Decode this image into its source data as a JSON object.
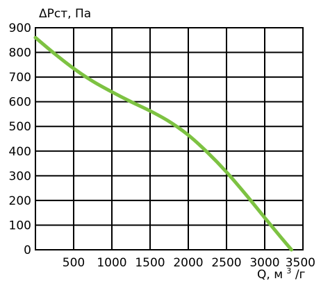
{
  "chart_data": {
    "type": "line",
    "title": "",
    "ylabel": "ΔРст, Па",
    "xlabel_main": "Q, м",
    "xlabel_sup": "3",
    "xlabel_tail": "/г",
    "xlim": [
      0,
      3500
    ],
    "ylim": [
      0,
      900
    ],
    "grid": true,
    "x_ticks": [
      500,
      1000,
      1500,
      2000,
      2500,
      3000,
      3500
    ],
    "y_ticks": [
      0,
      100,
      200,
      300,
      400,
      500,
      600,
      700,
      800,
      900
    ],
    "series": [
      {
        "color": "#7dc242",
        "x": [
          0,
          250,
          500,
          750,
          1000,
          1250,
          1500,
          1750,
          2000,
          2250,
          2500,
          2750,
          3000,
          3200,
          3350
        ],
        "y": [
          860,
          795,
          735,
          683,
          640,
          600,
          563,
          520,
          465,
          395,
          315,
          225,
          130,
          55,
          0
        ]
      }
    ]
  }
}
